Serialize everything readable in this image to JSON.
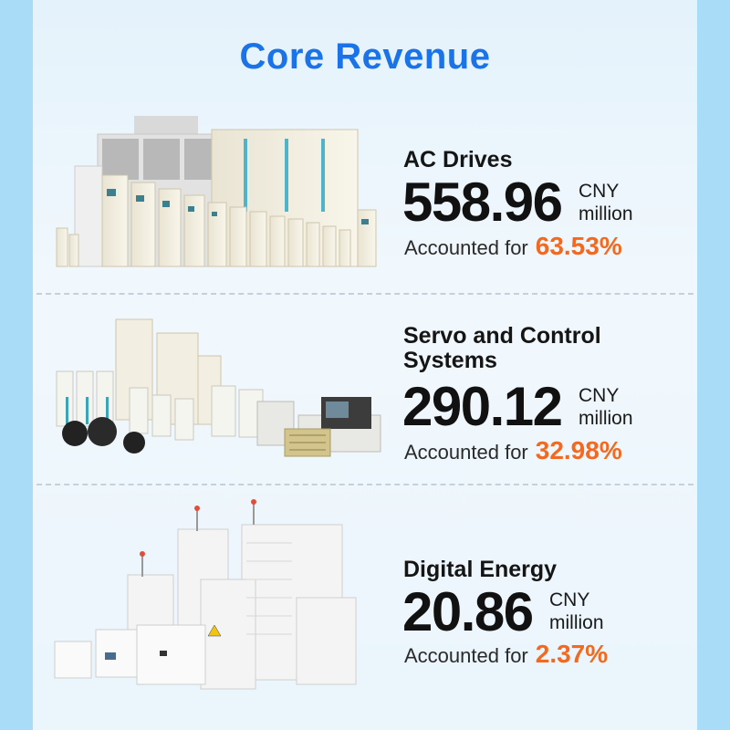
{
  "title": "Core Revenue",
  "sections": [
    {
      "name": "AC Drives",
      "value": "558.96",
      "unit_line1": "CNY",
      "unit_line2": "million",
      "share_label": "Accounted for",
      "share": "63.53%",
      "illustration_icon": "ac-drive-cabinets-icon"
    },
    {
      "name_line1": "Servo and Control",
      "name_line2": "Systems",
      "value": "290.12",
      "unit_line1": "CNY",
      "unit_line2": "million",
      "share_label": "Accounted for",
      "share": "32.98%",
      "illustration_icon": "servo-control-units-icon"
    },
    {
      "name": "Digital Energy",
      "value": "20.86",
      "unit_line1": "CNY",
      "unit_line2": "million",
      "share_label": "Accounted for",
      "share": "2.37%",
      "illustration_icon": "energy-storage-inverters-icon"
    }
  ],
  "colors": {
    "title": "#1a73e8",
    "share": "#f2691f",
    "background": "#a9dcf6"
  }
}
